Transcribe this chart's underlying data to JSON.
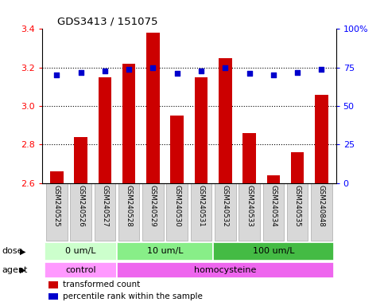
{
  "title": "GDS3413 / 151075",
  "samples": [
    "GSM240525",
    "GSM240526",
    "GSM240527",
    "GSM240528",
    "GSM240529",
    "GSM240530",
    "GSM240531",
    "GSM240532",
    "GSM240533",
    "GSM240534",
    "GSM240535",
    "GSM240848"
  ],
  "transformed_count": [
    2.66,
    2.84,
    3.15,
    3.22,
    3.38,
    2.95,
    3.15,
    3.25,
    2.86,
    2.64,
    2.76,
    3.06
  ],
  "percentile_rank": [
    70,
    72,
    73,
    74,
    75,
    71,
    73,
    75,
    71,
    70,
    72,
    74
  ],
  "ylim_left": [
    2.6,
    3.4
  ],
  "ylim_right": [
    0,
    100
  ],
  "yticks_left": [
    2.6,
    2.8,
    3.0,
    3.2,
    3.4
  ],
  "yticks_right": [
    0,
    25,
    50,
    75,
    100
  ],
  "ytick_labels_right": [
    "0",
    "25",
    "50",
    "75",
    "100%"
  ],
  "bar_color": "#cc0000",
  "dot_color": "#0000cc",
  "bar_bottom": 2.6,
  "dot_size": 18,
  "hgrid_values": [
    2.8,
    3.0,
    3.2
  ],
  "dose_labels": [
    "0 um/L",
    "10 um/L",
    "100 um/L"
  ],
  "dose_boundaries": [
    0,
    3,
    7,
    12
  ],
  "dose_colors": [
    "#ccffcc",
    "#88ee88",
    "#44bb44"
  ],
  "agent_labels": [
    "control",
    "homocysteine"
  ],
  "agent_boundaries": [
    0,
    3,
    12
  ],
  "agent_colors": [
    "#ff99ff",
    "#ee66ee"
  ],
  "legend_bar_label": "transformed count",
  "legend_dot_label": "percentile rank within the sample",
  "dose_row_label": "dose",
  "agent_row_label": "agent"
}
